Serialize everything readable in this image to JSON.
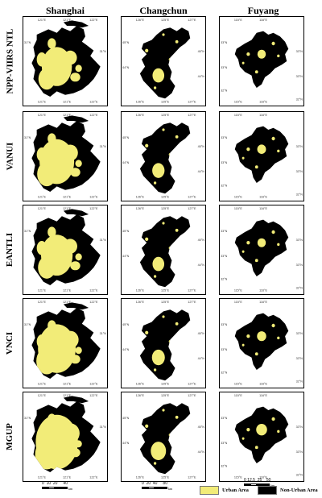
{
  "columns": [
    "Shanghai",
    "Changchun",
    "Fuyang"
  ],
  "rows": [
    "NPP-VIIRS NTL",
    "VANUI",
    "EANTLI",
    "VNCI",
    "MGUP"
  ],
  "ticks": {
    "shanghai_x": [
      "121°E",
      "121°E",
      "122°E"
    ],
    "shanghai_y": [
      "31°N"
    ],
    "changchun_x": [
      "126°E",
      "125°E",
      "127°E"
    ],
    "changchun_y": [
      "45°N",
      "44°N"
    ],
    "fuyang_x": [
      "115°E",
      "116°E"
    ],
    "fuyang_y": [
      "33°N",
      "33°N",
      "32°N"
    ]
  },
  "scalebars": {
    "shanghai": [
      "0",
      "10",
      "20",
      "40",
      "km"
    ],
    "changchun": [
      "0",
      "20",
      "40",
      "80",
      "km"
    ],
    "fuyang": [
      "0",
      "12.5",
      "25",
      "50",
      "km"
    ]
  },
  "legend": {
    "urban": "Urban Area",
    "non_urban": "Non-Urban Area",
    "urban_color": "#f2ec78",
    "non_urban_color": "#000000"
  }
}
